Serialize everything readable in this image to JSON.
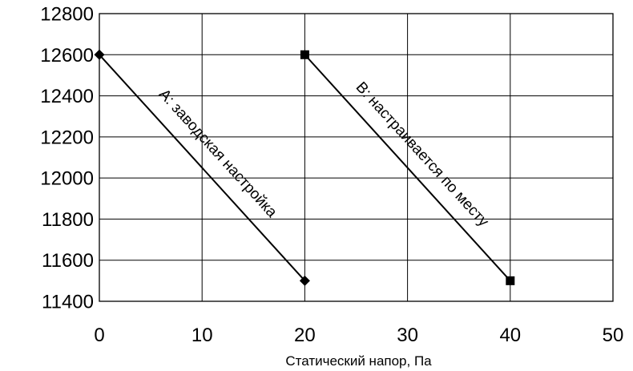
{
  "chart_data": {
    "type": "line",
    "title": "",
    "xlabel": "Статический напор, Па",
    "ylabel": "",
    "xlim": [
      0,
      50
    ],
    "ylim": [
      11400,
      12800
    ],
    "x_ticks": [
      0,
      10,
      20,
      30,
      40,
      50
    ],
    "y_ticks": [
      11400,
      11600,
      11800,
      12000,
      12200,
      12400,
      12600,
      12800
    ],
    "grid": true,
    "legend": "none",
    "series": [
      {
        "name": "A: заводская настройка",
        "marker": "diamond",
        "x": [
          0,
          20
        ],
        "y": [
          12600,
          11500
        ]
      },
      {
        "name": "B: настраивается по месту",
        "marker": "square",
        "x": [
          20,
          40
        ],
        "y": [
          12600,
          11500
        ]
      }
    ]
  }
}
